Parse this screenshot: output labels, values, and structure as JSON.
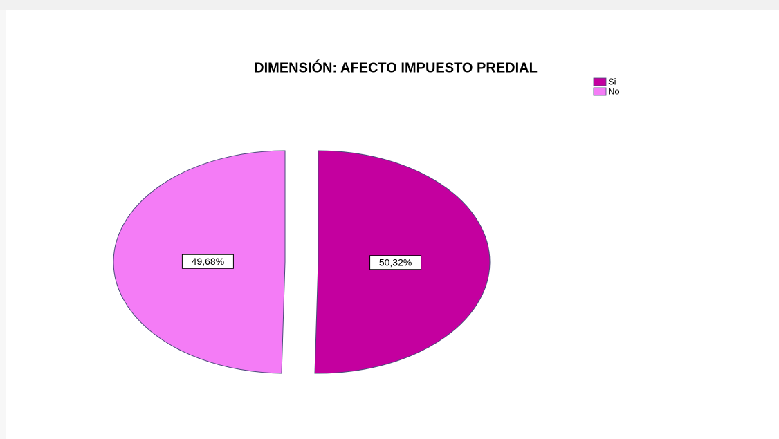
{
  "chart_data": {
    "type": "pie",
    "title": "DIMENSIÓN: AFECTO IMPUESTO PREDIAL",
    "categories": [
      "Si",
      "No"
    ],
    "values": [
      50.32,
      49.68
    ],
    "value_labels": [
      "50,32%",
      "49,68%"
    ],
    "colors": [
      "#c4009f",
      "#f47cf6"
    ],
    "legend": "upper right"
  }
}
